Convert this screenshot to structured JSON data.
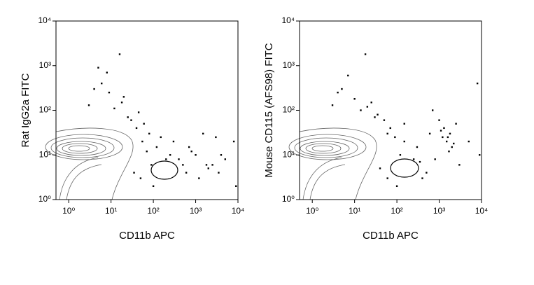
{
  "chart_data": [
    {
      "type": "scatter",
      "xlabel": "CD11b APC",
      "ylabel": "Rat IgG2a FITC",
      "log_x": true,
      "log_y": true,
      "color": "#000000",
      "xlim": [
        0.5,
        10000
      ],
      "ylim": [
        1,
        10000
      ],
      "xticks": [
        {
          "value": 1,
          "label": "10⁰"
        },
        {
          "value": 10,
          "label": "10¹"
        },
        {
          "value": 100,
          "label": "10²"
        },
        {
          "value": 1000,
          "label": "10³"
        },
        {
          "value": 10000,
          "label": "10⁴"
        }
      ],
      "yticks": [
        {
          "value": 1,
          "label": "10⁰"
        },
        {
          "value": 10,
          "label": "10¹"
        },
        {
          "value": 100,
          "label": "10²"
        },
        {
          "value": 1000,
          "label": "10³"
        },
        {
          "value": 10000,
          "label": "10⁴"
        }
      ],
      "x": [
        16,
        5,
        8,
        6,
        4,
        3,
        9,
        20,
        30,
        45,
        60,
        12,
        25,
        40,
        80,
        150,
        300,
        700,
        1500,
        3000,
        8000,
        200,
        500,
        1000,
        2000,
        5000,
        50,
        100,
        35,
        70,
        120,
        250,
        600,
        1200,
        2500,
        4000,
        9000,
        18,
        55,
        90,
        180,
        400,
        800,
        1800,
        3500
      ],
      "y": [
        1800,
        900,
        700,
        400,
        300,
        130,
        250,
        200,
        60,
        90,
        50,
        110,
        70,
        40,
        30,
        25,
        20,
        15,
        30,
        25,
        20,
        8,
        6,
        10,
        5,
        8,
        3,
        2,
        4,
        12,
        15,
        10,
        4,
        3,
        6,
        10,
        2,
        150,
        20,
        6,
        4,
        8,
        12,
        6,
        4
      ]
    },
    {
      "type": "scatter",
      "xlabel": "CD11b APC",
      "ylabel": "Mouse CD115 (AFS98) FITC",
      "log_x": true,
      "log_y": true,
      "color": "#000000",
      "xlim": [
        0.5,
        10000
      ],
      "ylim": [
        1,
        10000
      ],
      "xticks": [
        {
          "value": 1,
          "label": "10⁰"
        },
        {
          "value": 10,
          "label": "10¹"
        },
        {
          "value": 100,
          "label": "10²"
        },
        {
          "value": 1000,
          "label": "10³"
        },
        {
          "value": 10000,
          "label": "10⁴"
        }
      ],
      "yticks": [
        {
          "value": 1,
          "label": "10⁰"
        },
        {
          "value": 10,
          "label": "10¹"
        },
        {
          "value": 100,
          "label": "10²"
        },
        {
          "value": 1000,
          "label": "10³"
        },
        {
          "value": 10000,
          "label": "10⁴"
        }
      ],
      "x": [
        18,
        7,
        5,
        4,
        3,
        10,
        25,
        35,
        50,
        70,
        14,
        30,
        60,
        90,
        150,
        300,
        600,
        1000,
        1200,
        1500,
        1800,
        2000,
        1300,
        1700,
        2500,
        800,
        5000,
        9000,
        200,
        400,
        100,
        40,
        120,
        250,
        500,
        3000,
        700,
        1100,
        2200,
        1600,
        60,
        20,
        8000,
        350,
        150
      ],
      "y": [
        1800,
        600,
        300,
        250,
        130,
        180,
        150,
        80,
        60,
        40,
        100,
        70,
        30,
        25,
        20,
        15,
        30,
        60,
        25,
        20,
        30,
        15,
        40,
        12,
        50,
        8,
        20,
        10,
        4,
        3,
        2,
        5,
        10,
        8,
        4,
        6,
        100,
        35,
        18,
        25,
        3,
        120,
        400,
        7,
        50
      ]
    }
  ]
}
